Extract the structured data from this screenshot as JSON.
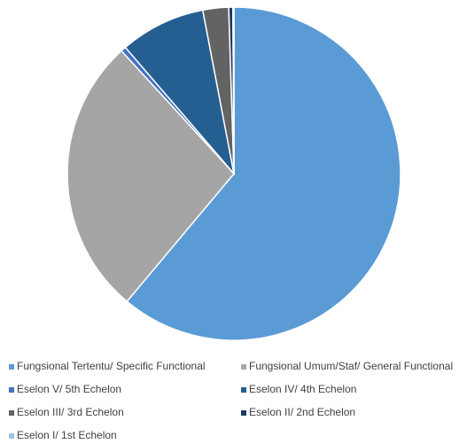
{
  "chart_data": {
    "type": "pie",
    "categories": [
      "Fungsional Tertentu/ Specific Functional",
      "Fungsional Umum/Staf/ General Functional",
      "Eselon V/ 5th Echelon",
      "Eselon IV/ 4th Echelon",
      "Eselon III/ 3rd Echelon",
      "Eselon II/ 2nd Echelon",
      "Eselon I/ 1st Echelon"
    ],
    "values": [
      61.1,
      27.1,
      0.5,
      8.3,
      2.5,
      0.4,
      0.1
    ],
    "colors": [
      "#5b9bd5",
      "#a5a5a5",
      "#4472c4",
      "#255e91",
      "#636363",
      "#1f3864",
      "#9dc3e6"
    ],
    "legend": "bottom"
  }
}
